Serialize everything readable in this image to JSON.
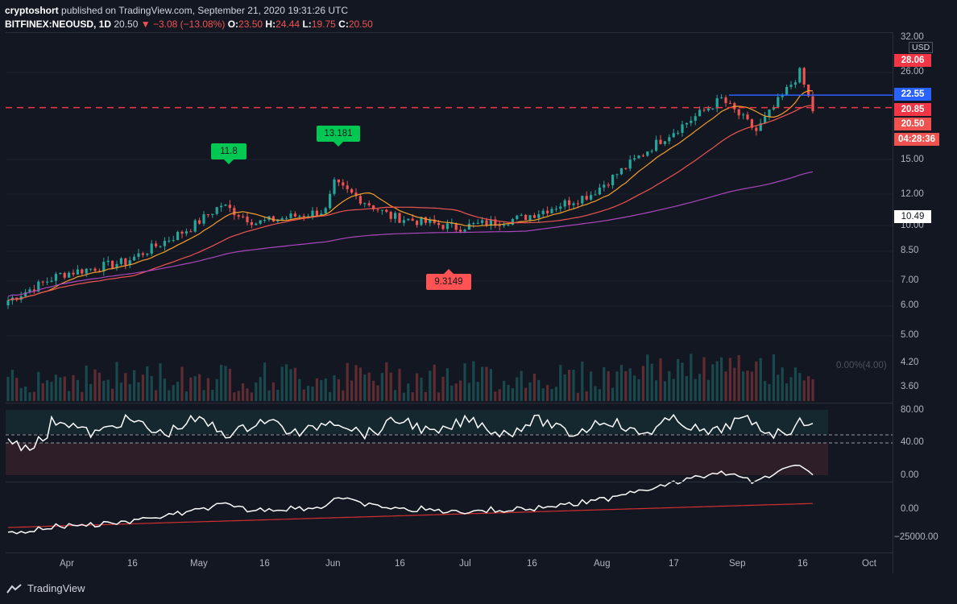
{
  "header": {
    "publisher": "cryptoshort",
    "published_text": " published on TradingView.com, September 21, 2020 19:31:26 UTC",
    "symbol": "BITFINEX:NEOUSD, 1D",
    "last": "20.50",
    "change": "▼ −3.08 (−13.08%)",
    "o_label": "O:",
    "o_val": "23.50",
    "h_label": "H:",
    "h_val": "24.44",
    "l_label": "L:",
    "l_val": "19.75",
    "c_label": "C:",
    "c_val": "20.50"
  },
  "price_axis": {
    "currency": "USD",
    "ticks": [
      "32.00",
      "26.00",
      "15.00",
      "12.00",
      "10.00",
      "8.50",
      "7.00",
      "6.00",
      "5.00",
      "4.20",
      "3.60"
    ],
    "tags": {
      "t1": "28.06",
      "t2": "22.55",
      "t3": "20.85",
      "t4": "20.50",
      "t5": "04:28:36",
      "t6": "10.49"
    },
    "colors": {
      "red": "#f23645",
      "blue": "#2962ff",
      "white": "#ffffff",
      "red_light": "#ef5350"
    }
  },
  "callouts": {
    "high1": "11.8",
    "high2": "13.181",
    "low1": "9.3149"
  },
  "volume_label": "0.00%(4.00)",
  "rsi_axis": [
    "80.00",
    "40.00",
    "0.00"
  ],
  "obv_axis": [
    "0.00",
    "−25000.00"
  ],
  "time_axis": [
    "Apr",
    "16",
    "May",
    "16",
    "Jun",
    "16",
    "Jul",
    "16",
    "Aug",
    "17",
    "Sep",
    "16",
    "Oct"
  ],
  "footer": {
    "brand": "TradingView"
  },
  "chart_data": {
    "type": "candlestick",
    "symbol": "BITFINEX:NEOUSD",
    "interval": "1D",
    "y_scale": "log",
    "close_path": [
      {
        "date": "2020-03-20",
        "close": 6.2
      },
      {
        "date": "2020-04-01",
        "close": 7.3
      },
      {
        "date": "2020-04-16",
        "close": 7.9
      },
      {
        "date": "2020-05-01",
        "close": 9.8
      },
      {
        "date": "2020-05-08",
        "close": 11.3
      },
      {
        "date": "2020-05-16",
        "close": 10.1
      },
      {
        "date": "2020-06-01",
        "close": 10.9
      },
      {
        "date": "2020-06-03",
        "close": 12.9
      },
      {
        "date": "2020-06-16",
        "close": 10.5
      },
      {
        "date": "2020-07-01",
        "close": 9.8
      },
      {
        "date": "2020-07-16",
        "close": 10.4
      },
      {
        "date": "2020-08-01",
        "close": 12.1
      },
      {
        "date": "2020-08-17",
        "close": 17.0
      },
      {
        "date": "2020-08-31",
        "close": 22.0
      },
      {
        "date": "2020-09-08",
        "close": 18.0
      },
      {
        "date": "2020-09-18",
        "close": 26.0
      },
      {
        "date": "2020-09-21",
        "close": 20.5
      }
    ],
    "horizontal_lines": [
      {
        "value": 22.55,
        "color": "#2962ff"
      },
      {
        "value": 20.85,
        "color": "#f23645",
        "style": "dashed"
      }
    ]
  }
}
